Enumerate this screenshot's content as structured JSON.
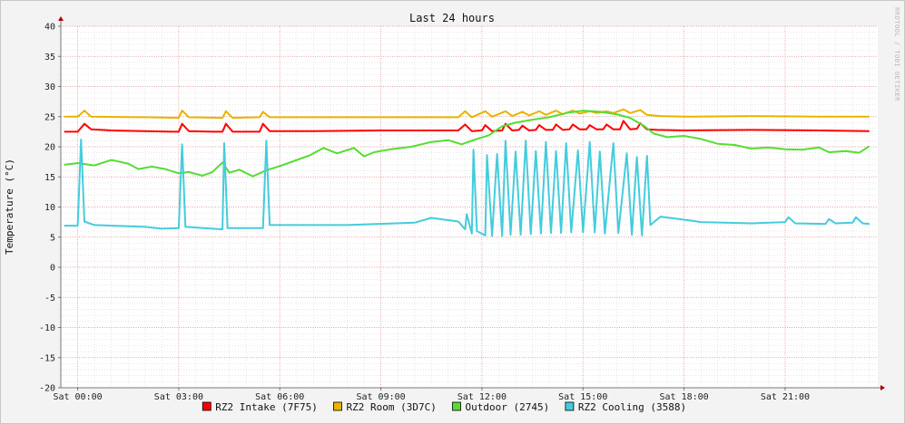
{
  "watermark": "RRDTOOL / TOBI OETIKER",
  "chart_data": {
    "type": "line",
    "title": "Last 24 hours",
    "ylabel": "Temperature (°C)",
    "xlabel": "",
    "x_unit": "hours since Sat 00:00",
    "xlim": [
      -0.5,
      23.75
    ],
    "ylim": [
      -20,
      40
    ],
    "y_ticks": [
      -20,
      -15,
      -10,
      -5,
      0,
      5,
      10,
      15,
      20,
      25,
      30,
      35,
      40
    ],
    "x_ticks": [
      {
        "x": 0,
        "label": "Sat 00:00"
      },
      {
        "x": 3,
        "label": "Sat 03:00"
      },
      {
        "x": 6,
        "label": "Sat 06:00"
      },
      {
        "x": 9,
        "label": "Sat 09:00"
      },
      {
        "x": 12,
        "label": "Sat 12:00"
      },
      {
        "x": 15,
        "label": "Sat 15:00"
      },
      {
        "x": 18,
        "label": "Sat 18:00"
      },
      {
        "x": 21,
        "label": "Sat 21:00"
      }
    ],
    "grid": true,
    "legend_position": "bottom",
    "series": [
      {
        "name": "RZ2 Intake (7F75)",
        "color": "#ff0000",
        "points": [
          [
            -0.4,
            22.5
          ],
          [
            0,
            22.5
          ],
          [
            0.2,
            23.8
          ],
          [
            0.4,
            22.9
          ],
          [
            1,
            22.7
          ],
          [
            2,
            22.6
          ],
          [
            2.8,
            22.5
          ],
          [
            3,
            22.5
          ],
          [
            3.1,
            23.8
          ],
          [
            3.3,
            22.6
          ],
          [
            4,
            22.5
          ],
          [
            4.3,
            22.5
          ],
          [
            4.4,
            23.8
          ],
          [
            4.6,
            22.5
          ],
          [
            5.4,
            22.5
          ],
          [
            5.5,
            23.8
          ],
          [
            5.7,
            22.6
          ],
          [
            7,
            22.6
          ],
          [
            9,
            22.7
          ],
          [
            11.3,
            22.7
          ],
          [
            11.5,
            23.7
          ],
          [
            11.7,
            22.6
          ],
          [
            12,
            22.7
          ],
          [
            12.1,
            23.6
          ],
          [
            12.3,
            22.6
          ],
          [
            12.6,
            22.7
          ],
          [
            12.7,
            23.8
          ],
          [
            12.9,
            22.7
          ],
          [
            13.1,
            22.8
          ],
          [
            13.2,
            23.5
          ],
          [
            13.4,
            22.7
          ],
          [
            13.6,
            22.8
          ],
          [
            13.7,
            23.6
          ],
          [
            13.9,
            22.8
          ],
          [
            14.1,
            22.8
          ],
          [
            14.2,
            23.7
          ],
          [
            14.4,
            22.8
          ],
          [
            14.6,
            22.9
          ],
          [
            14.7,
            23.7
          ],
          [
            14.9,
            22.9
          ],
          [
            15.1,
            22.9
          ],
          [
            15.2,
            23.6
          ],
          [
            15.4,
            22.9
          ],
          [
            15.6,
            22.9
          ],
          [
            15.7,
            23.7
          ],
          [
            15.9,
            22.9
          ],
          [
            16.1,
            22.9
          ],
          [
            16.2,
            24.3
          ],
          [
            16.4,
            22.9
          ],
          [
            16.6,
            23.0
          ],
          [
            16.7,
            23.9
          ],
          [
            16.9,
            22.9
          ],
          [
            17.2,
            22.8
          ],
          [
            18,
            22.7
          ],
          [
            20,
            22.8
          ],
          [
            22,
            22.7
          ],
          [
            23.5,
            22.6
          ]
        ]
      },
      {
        "name": "RZ2 Room (3D7C)",
        "color": "#e8b400",
        "points": [
          [
            -0.4,
            25.0
          ],
          [
            0,
            25.0
          ],
          [
            0.2,
            26.0
          ],
          [
            0.4,
            25.0
          ],
          [
            2,
            24.9
          ],
          [
            3,
            24.8
          ],
          [
            3.1,
            26.0
          ],
          [
            3.3,
            24.9
          ],
          [
            4.3,
            24.8
          ],
          [
            4.4,
            25.9
          ],
          [
            4.6,
            24.8
          ],
          [
            5.4,
            24.9
          ],
          [
            5.5,
            25.8
          ],
          [
            5.7,
            24.9
          ],
          [
            8,
            24.9
          ],
          [
            11.3,
            24.9
          ],
          [
            11.5,
            25.9
          ],
          [
            11.7,
            24.9
          ],
          [
            12.1,
            25.9
          ],
          [
            12.3,
            25.0
          ],
          [
            12.7,
            25.9
          ],
          [
            12.9,
            25.1
          ],
          [
            13.2,
            25.8
          ],
          [
            13.4,
            25.2
          ],
          [
            13.7,
            25.9
          ],
          [
            13.9,
            25.3
          ],
          [
            14.2,
            26.0
          ],
          [
            14.4,
            25.4
          ],
          [
            14.7,
            26.0
          ],
          [
            14.9,
            25.5
          ],
          [
            15.2,
            25.9
          ],
          [
            15.4,
            25.6
          ],
          [
            15.7,
            25.9
          ],
          [
            15.9,
            25.6
          ],
          [
            16.2,
            26.2
          ],
          [
            16.4,
            25.6
          ],
          [
            16.7,
            26.1
          ],
          [
            16.9,
            25.3
          ],
          [
            17.3,
            25.1
          ],
          [
            18,
            25.0
          ],
          [
            20,
            25.1
          ],
          [
            22,
            25.0
          ],
          [
            23.5,
            25.0
          ]
        ]
      },
      {
        "name": "Outdoor (2745)",
        "color": "#55dd33",
        "points": [
          [
            -0.4,
            17.0
          ],
          [
            0,
            17.3
          ],
          [
            0.5,
            16.9
          ],
          [
            1,
            17.8
          ],
          [
            1.5,
            17.2
          ],
          [
            1.8,
            16.3
          ],
          [
            2.2,
            16.7
          ],
          [
            2.6,
            16.3
          ],
          [
            3.0,
            15.6
          ],
          [
            3.3,
            15.8
          ],
          [
            3.7,
            15.2
          ],
          [
            4.0,
            15.8
          ],
          [
            4.3,
            17.4
          ],
          [
            4.5,
            15.7
          ],
          [
            4.8,
            16.2
          ],
          [
            5.2,
            15.1
          ],
          [
            5.6,
            16.1
          ],
          [
            6.0,
            16.8
          ],
          [
            6.4,
            17.6
          ],
          [
            6.9,
            18.6
          ],
          [
            7.3,
            19.8
          ],
          [
            7.7,
            18.9
          ],
          [
            8.2,
            19.8
          ],
          [
            8.5,
            18.4
          ],
          [
            8.8,
            19.1
          ],
          [
            9.3,
            19.6
          ],
          [
            9.9,
            20.0
          ],
          [
            10.5,
            20.8
          ],
          [
            11.0,
            21.1
          ],
          [
            11.4,
            20.4
          ],
          [
            11.8,
            21.2
          ],
          [
            12.2,
            21.9
          ],
          [
            12.6,
            23.4
          ],
          [
            13.0,
            24.0
          ],
          [
            13.5,
            24.5
          ],
          [
            14.0,
            24.9
          ],
          [
            14.5,
            25.6
          ],
          [
            15.0,
            26.0
          ],
          [
            15.5,
            25.8
          ],
          [
            16.0,
            25.4
          ],
          [
            16.4,
            24.8
          ],
          [
            16.8,
            23.5
          ],
          [
            17.1,
            22.2
          ],
          [
            17.5,
            21.6
          ],
          [
            18.0,
            21.8
          ],
          [
            18.5,
            21.3
          ],
          [
            19.0,
            20.5
          ],
          [
            19.5,
            20.3
          ],
          [
            20.0,
            19.7
          ],
          [
            20.5,
            19.9
          ],
          [
            21.0,
            19.6
          ],
          [
            21.5,
            19.5
          ],
          [
            22.0,
            19.9
          ],
          [
            22.3,
            19.1
          ],
          [
            22.8,
            19.3
          ],
          [
            23.2,
            19.0
          ],
          [
            23.5,
            20.1
          ]
        ]
      },
      {
        "name": "RZ2 Cooling (3588)",
        "color": "#44ccdd",
        "points": [
          [
            -0.4,
            6.9
          ],
          [
            0,
            6.9
          ],
          [
            0.1,
            21.2
          ],
          [
            0.2,
            7.6
          ],
          [
            0.5,
            7.0
          ],
          [
            2,
            6.7
          ],
          [
            2.5,
            6.4
          ],
          [
            3.0,
            6.5
          ],
          [
            3.1,
            20.4
          ],
          [
            3.2,
            6.7
          ],
          [
            4.3,
            6.3
          ],
          [
            4.35,
            20.6
          ],
          [
            4.45,
            6.5
          ],
          [
            5.5,
            6.5
          ],
          [
            5.6,
            21.0
          ],
          [
            5.7,
            7.0
          ],
          [
            8,
            7.0
          ],
          [
            10,
            7.4
          ],
          [
            10.5,
            8.2
          ],
          [
            11.3,
            7.6
          ],
          [
            11.5,
            6.3
          ],
          [
            11.55,
            8.8
          ],
          [
            11.7,
            5.6
          ],
          [
            11.75,
            19.5
          ],
          [
            11.85,
            6.0
          ],
          [
            12.1,
            5.3
          ],
          [
            12.15,
            18.6
          ],
          [
            12.3,
            5.2
          ],
          [
            12.45,
            18.8
          ],
          [
            12.6,
            5.2
          ],
          [
            12.7,
            21.0
          ],
          [
            12.85,
            5.4
          ],
          [
            13.0,
            19.2
          ],
          [
            13.15,
            5.4
          ],
          [
            13.3,
            21.0
          ],
          [
            13.45,
            5.5
          ],
          [
            13.6,
            19.3
          ],
          [
            13.75,
            5.6
          ],
          [
            13.9,
            20.8
          ],
          [
            14.05,
            5.7
          ],
          [
            14.2,
            19.3
          ],
          [
            14.35,
            5.7
          ],
          [
            14.5,
            20.6
          ],
          [
            14.65,
            5.8
          ],
          [
            14.85,
            19.4
          ],
          [
            15.0,
            5.8
          ],
          [
            15.2,
            20.8
          ],
          [
            15.35,
            5.8
          ],
          [
            15.5,
            19.2
          ],
          [
            15.65,
            5.6
          ],
          [
            15.9,
            20.6
          ],
          [
            16.05,
            5.7
          ],
          [
            16.3,
            18.9
          ],
          [
            16.45,
            5.4
          ],
          [
            16.6,
            18.3
          ],
          [
            16.75,
            5.3
          ],
          [
            16.9,
            18.5
          ],
          [
            17.0,
            7.0
          ],
          [
            17.3,
            8.4
          ],
          [
            18,
            7.9
          ],
          [
            18.5,
            7.5
          ],
          [
            20,
            7.3
          ],
          [
            21,
            7.5
          ],
          [
            21.1,
            8.3
          ],
          [
            21.3,
            7.3
          ],
          [
            22.2,
            7.2
          ],
          [
            22.3,
            8.0
          ],
          [
            22.5,
            7.3
          ],
          [
            23.0,
            7.4
          ],
          [
            23.1,
            8.3
          ],
          [
            23.3,
            7.3
          ],
          [
            23.5,
            7.2
          ]
        ]
      }
    ]
  }
}
